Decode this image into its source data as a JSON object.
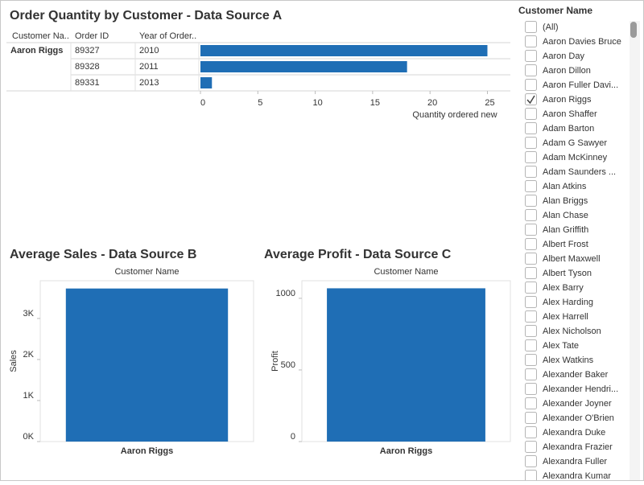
{
  "chart_data": [
    {
      "type": "hbar",
      "title": "Order Quantity by Customer - Data Source A",
      "column_headers": [
        "Customer Na..",
        "Order ID",
        "Year of Order.."
      ],
      "customer": "Aaron Riggs",
      "order_ids": [
        "89327",
        "89328",
        "89331"
      ],
      "years": [
        "2010",
        "2011",
        "2013"
      ],
      "values": [
        25,
        18,
        1
      ],
      "color": "#1f6eb5",
      "xlim": [
        0,
        27
      ],
      "xticks": [
        0,
        5,
        10,
        15,
        20,
        25
      ],
      "xlabel": "Quantity ordered new"
    },
    {
      "type": "bar",
      "title": "Average Sales - Data Source B",
      "header": "Customer Name",
      "categories": [
        "Aaron Riggs"
      ],
      "values": [
        3730
      ],
      "color": "#1f6eb5",
      "ylabel": "Sales",
      "ylim": [
        0,
        3920
      ],
      "yticks": [
        {
          "value": 0,
          "label": "0K"
        },
        {
          "value": 1000,
          "label": "1K"
        },
        {
          "value": 2000,
          "label": "2K"
        },
        {
          "value": 3000,
          "label": "3K"
        }
      ]
    },
    {
      "type": "bar",
      "title": "Average Profit - Data Source C",
      "header": "Customer Name",
      "categories": [
        "Aaron Riggs"
      ],
      "values": [
        1070
      ],
      "color": "#1f6eb5",
      "ylabel": "Profit",
      "ylim": [
        0,
        1123
      ],
      "yticks": [
        0,
        500,
        1000
      ]
    }
  ],
  "filter": {
    "title": "Customer Name",
    "items": [
      {
        "label": "(All)",
        "checked": false
      },
      {
        "label": "Aaron Davies Bruce",
        "checked": false
      },
      {
        "label": "Aaron Day",
        "checked": false
      },
      {
        "label": "Aaron Dillon",
        "checked": false
      },
      {
        "label": "Aaron Fuller Davi...",
        "checked": false
      },
      {
        "label": "Aaron Riggs",
        "checked": true
      },
      {
        "label": "Aaron Shaffer",
        "checked": false
      },
      {
        "label": "Adam Barton",
        "checked": false
      },
      {
        "label": "Adam G Sawyer",
        "checked": false
      },
      {
        "label": "Adam McKinney",
        "checked": false
      },
      {
        "label": "Adam Saunders ...",
        "checked": false
      },
      {
        "label": "Alan Atkins",
        "checked": false
      },
      {
        "label": "Alan Briggs",
        "checked": false
      },
      {
        "label": "Alan Chase",
        "checked": false
      },
      {
        "label": "Alan Griffith",
        "checked": false
      },
      {
        "label": "Albert Frost",
        "checked": false
      },
      {
        "label": "Albert Maxwell",
        "checked": false
      },
      {
        "label": "Albert Tyson",
        "checked": false
      },
      {
        "label": "Alex Barry",
        "checked": false
      },
      {
        "label": "Alex Harding",
        "checked": false
      },
      {
        "label": "Alex Harrell",
        "checked": false
      },
      {
        "label": "Alex Nicholson",
        "checked": false
      },
      {
        "label": "Alex Tate",
        "checked": false
      },
      {
        "label": "Alex Watkins",
        "checked": false
      },
      {
        "label": "Alexander Baker",
        "checked": false
      },
      {
        "label": "Alexander Hendri...",
        "checked": false
      },
      {
        "label": "Alexander Joyner",
        "checked": false
      },
      {
        "label": "Alexander O'Brien",
        "checked": false
      },
      {
        "label": "Alexandra Duke",
        "checked": false
      },
      {
        "label": "Alexandra Frazier",
        "checked": false
      },
      {
        "label": "Alexandra Fuller",
        "checked": false
      },
      {
        "label": "Alexandra Kumar",
        "checked": false
      }
    ]
  }
}
